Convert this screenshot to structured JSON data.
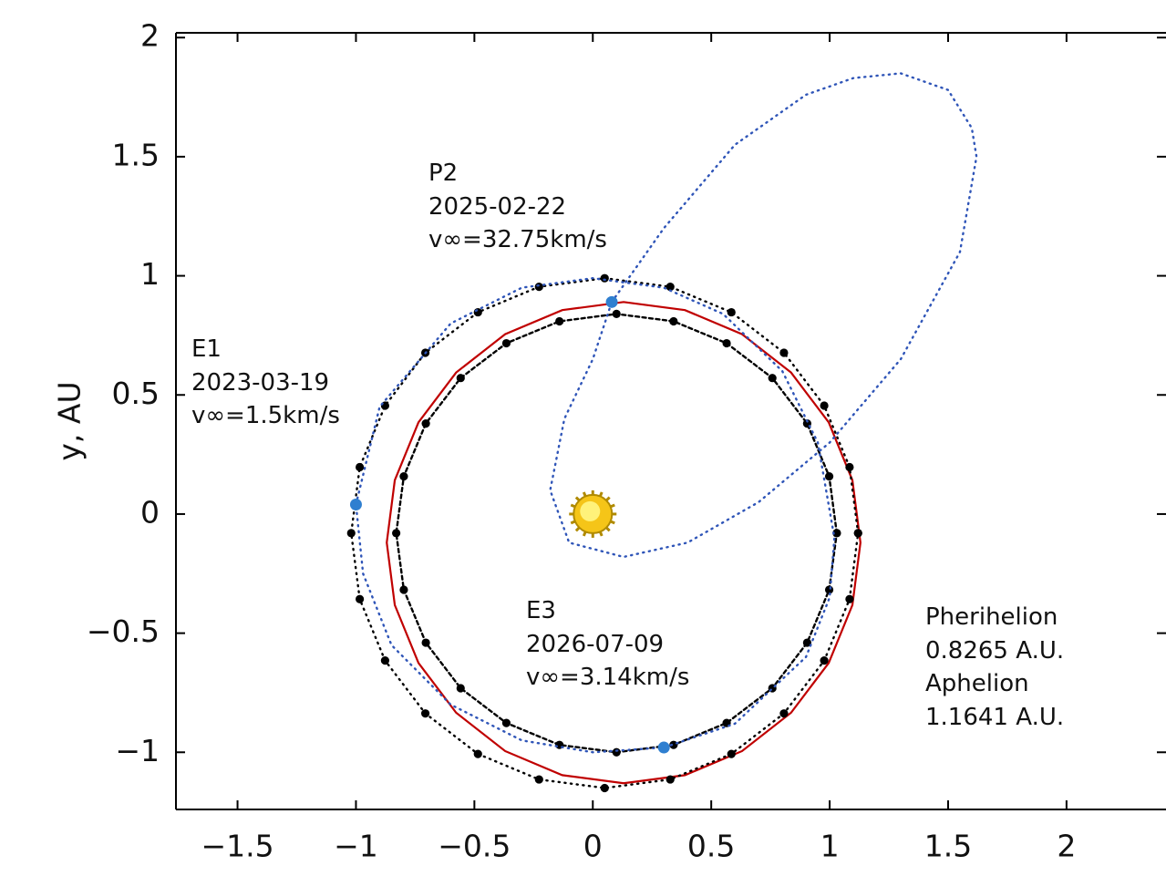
{
  "chart_data": {
    "type": "scatter",
    "y_label": "y, AU",
    "xlim": [
      -1.76,
      2.42
    ],
    "ylim": [
      -1.24,
      2.02
    ],
    "xticks": [
      {
        "value": -1.5,
        "label": "−1.5"
      },
      {
        "value": -1,
        "label": "−1"
      },
      {
        "value": -0.5,
        "label": "−0.5"
      },
      0,
      0.5,
      1,
      1.5,
      2
    ],
    "yticks": [
      {
        "value": -1,
        "label": "−1"
      },
      {
        "value": -0.5,
        "label": "−0.5"
      },
      0,
      0.5,
      1,
      1.5,
      2
    ],
    "grid": false,
    "series": [
      {
        "color": "#c00000",
        "style": "solid",
        "markers": false,
        "x": [
          1.13,
          1.096,
          0.996,
          0.837,
          0.63,
          0.389,
          0.13,
          -0.129,
          -0.37,
          -0.577,
          -0.736,
          -0.836,
          -0.87,
          -0.836,
          -0.736,
          -0.577,
          -0.37,
          -0.129,
          0.13,
          0.389,
          0.63,
          0.837,
          0.996,
          1.096,
          1.13
        ],
        "y": [
          -0.12,
          0.142,
          0.385,
          0.594,
          0.755,
          0.856,
          0.89,
          0.856,
          0.755,
          0.594,
          0.385,
          0.142,
          -0.12,
          -0.382,
          -0.625,
          -0.834,
          -0.995,
          -1.096,
          -1.13,
          -1.096,
          -0.995,
          -0.834,
          -0.625,
          -0.382,
          -0.12
        ]
      },
      {
        "color": "#000000",
        "style": "dotted",
        "markers": true,
        "x": [
          1.12,
          1.084,
          0.977,
          0.807,
          0.585,
          0.327,
          0.05,
          -0.227,
          -0.485,
          -0.707,
          -0.877,
          -0.984,
          -1.02,
          -0.984,
          -0.877,
          -0.707,
          -0.485,
          -0.227,
          0.05,
          0.327,
          0.585,
          0.807,
          0.977,
          1.084,
          1.12
        ],
        "y": [
          -0.08,
          0.197,
          0.455,
          0.677,
          0.847,
          0.954,
          0.99,
          0.954,
          0.847,
          0.677,
          0.455,
          0.197,
          -0.08,
          -0.357,
          -0.615,
          -0.837,
          -1.007,
          -1.114,
          -1.15,
          -1.114,
          -1.007,
          -0.837,
          -0.615,
          -0.357,
          -0.08
        ]
      },
      {
        "color": "#000000",
        "style": "dashed",
        "markers": true,
        "x": [
          1.03,
          0.998,
          0.905,
          0.758,
          0.565,
          0.341,
          0.1,
          -0.141,
          -0.365,
          -0.558,
          -0.705,
          -0.798,
          -0.83,
          -0.798,
          -0.705,
          -0.558,
          -0.365,
          -0.141,
          0.1,
          0.341,
          0.565,
          0.758,
          0.905,
          0.998,
          1.03
        ],
        "y": [
          -0.08,
          0.158,
          0.38,
          0.571,
          0.717,
          0.809,
          0.84,
          0.809,
          0.717,
          0.571,
          0.38,
          0.158,
          -0.08,
          -0.318,
          -0.54,
          -0.731,
          -0.877,
          -0.969,
          -1.0,
          -0.969,
          -0.877,
          -0.731,
          -0.54,
          -0.318,
          -0.08
        ]
      },
      {
        "color": "#2f55b8",
        "style": "dotted",
        "markers": false,
        "x": [
          -1.0,
          -0.9,
          -0.6,
          -0.3,
          0.0,
          0.3,
          0.55,
          0.8,
          0.95,
          1.02,
          1.0,
          0.9,
          0.6,
          0.3,
          0.0,
          -0.3,
          -0.6,
          -0.85,
          -0.97,
          -1.0
        ],
        "y": [
          0.04,
          0.45,
          0.8,
          0.95,
          0.99,
          0.95,
          0.84,
          0.6,
          0.3,
          -0.1,
          -0.35,
          -0.6,
          -0.88,
          -0.98,
          -1.0,
          -0.95,
          -0.8,
          -0.55,
          -0.25,
          0.04
        ]
      },
      {
        "color": "#2f55b8",
        "style": "dotted",
        "markers": false,
        "x": [
          0.08,
          0.3,
          0.6,
          0.9,
          1.1,
          1.3,
          1.5,
          1.6,
          1.62,
          1.55,
          1.3,
          1.0,
          0.7,
          0.4,
          0.13,
          -0.1,
          -0.18,
          -0.12,
          0.0,
          0.08
        ],
        "y": [
          0.89,
          1.2,
          1.55,
          1.76,
          1.83,
          1.85,
          1.78,
          1.62,
          1.5,
          1.1,
          0.65,
          0.3,
          0.05,
          -0.12,
          -0.18,
          -0.12,
          0.1,
          0.4,
          0.65,
          0.89
        ]
      },
      {
        "color": "#2f7fd0",
        "style": "none",
        "markers": true,
        "x": [
          -1.0,
          0.08,
          0.3
        ],
        "y": [
          0.04,
          0.89,
          -0.98
        ]
      },
      {
        "color": "#f5c518",
        "style": "sun",
        "markers": true,
        "x": [
          0
        ],
        "y": [
          0
        ]
      }
    ],
    "annotations": [
      [
        "P2",
        "2025-02-22",
        "v∞=32.75km/s"
      ],
      [
        "E1",
        "2023-03-19",
        "v∞=1.5km/s"
      ],
      [
        "E3",
        "2026-07-09",
        "v∞=3.14km/s"
      ],
      [
        "Pherihelion",
        "0.8265 A.U.",
        "Aphelion",
        "1.1641 A.U."
      ]
    ]
  }
}
